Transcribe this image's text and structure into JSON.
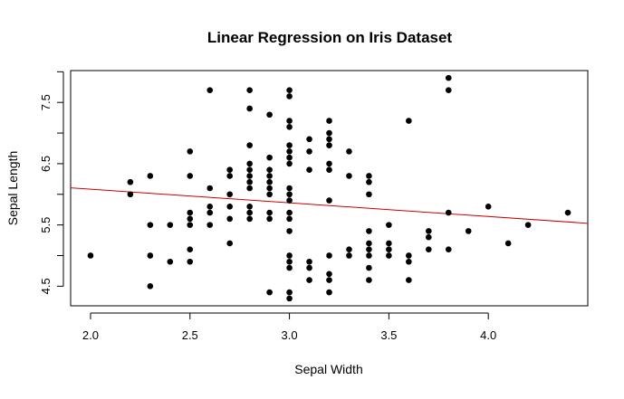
{
  "chart_data": {
    "type": "scatter",
    "title": "Linear Regression on Iris Dataset",
    "xlabel": "Sepal Width",
    "ylabel": "Sepal Length",
    "xlim": [
      1.9,
      4.5
    ],
    "ylim": [
      4.18,
      8.02
    ],
    "x_ticks": [
      2.0,
      2.5,
      3.0,
      3.5,
      4.0
    ],
    "x_tick_labels": [
      "2.0",
      "2.5",
      "3.0",
      "3.5",
      "4.0"
    ],
    "y_ticks": [
      4.5,
      5.0,
      5.5,
      6.0,
      6.5,
      7.0,
      7.5,
      8.0
    ],
    "y_tick_labels": {
      "4.5": "4.5",
      "5.5": "5.5",
      "6.5": "6.5",
      "7.5": "7.5"
    },
    "grid": false,
    "colors": {
      "points": "#000000",
      "regression_line": "#cc0000"
    },
    "regression_line": {
      "x_range": [
        1.9,
        4.5
      ],
      "intercept": 6.53,
      "slope": -0.223
    },
    "points": [
      [
        2.0,
        5.0
      ],
      [
        2.2,
        6.2
      ],
      [
        2.2,
        6.0
      ],
      [
        2.3,
        6.3
      ],
      [
        2.3,
        5.5
      ],
      [
        2.3,
        5.0
      ],
      [
        2.3,
        4.5
      ],
      [
        2.4,
        5.5
      ],
      [
        2.4,
        4.9
      ],
      [
        2.5,
        6.7
      ],
      [
        2.5,
        6.3
      ],
      [
        2.5,
        5.7
      ],
      [
        2.5,
        5.6
      ],
      [
        2.5,
        5.5
      ],
      [
        2.5,
        5.1
      ],
      [
        2.5,
        4.9
      ],
      [
        2.6,
        7.7
      ],
      [
        2.6,
        6.1
      ],
      [
        2.6,
        5.8
      ],
      [
        2.6,
        5.7
      ],
      [
        2.6,
        5.5
      ],
      [
        2.7,
        6.4
      ],
      [
        2.7,
        6.3
      ],
      [
        2.7,
        6.0
      ],
      [
        2.7,
        5.8
      ],
      [
        2.7,
        5.6
      ],
      [
        2.7,
        5.2
      ],
      [
        2.8,
        7.7
      ],
      [
        2.8,
        7.4
      ],
      [
        2.8,
        6.8
      ],
      [
        2.8,
        6.5
      ],
      [
        2.8,
        6.4
      ],
      [
        2.8,
        6.3
      ],
      [
        2.8,
        6.2
      ],
      [
        2.8,
        6.1
      ],
      [
        2.8,
        5.8
      ],
      [
        2.8,
        5.7
      ],
      [
        2.8,
        5.6
      ],
      [
        2.9,
        7.3
      ],
      [
        2.9,
        6.6
      ],
      [
        2.9,
        6.4
      ],
      [
        2.9,
        6.3
      ],
      [
        2.9,
        6.2
      ],
      [
        2.9,
        6.1
      ],
      [
        2.9,
        6.0
      ],
      [
        2.9,
        5.7
      ],
      [
        2.9,
        5.6
      ],
      [
        2.9,
        4.4
      ],
      [
        3.0,
        7.7
      ],
      [
        3.0,
        7.6
      ],
      [
        3.0,
        7.2
      ],
      [
        3.0,
        7.1
      ],
      [
        3.0,
        6.8
      ],
      [
        3.0,
        6.7
      ],
      [
        3.0,
        6.6
      ],
      [
        3.0,
        6.5
      ],
      [
        3.0,
        6.1
      ],
      [
        3.0,
        6.0
      ],
      [
        3.0,
        5.9
      ],
      [
        3.0,
        5.7
      ],
      [
        3.0,
        5.6
      ],
      [
        3.0,
        5.4
      ],
      [
        3.0,
        5.0
      ],
      [
        3.0,
        4.9
      ],
      [
        3.0,
        4.8
      ],
      [
        3.0,
        4.4
      ],
      [
        3.0,
        4.3
      ],
      [
        3.1,
        6.9
      ],
      [
        3.1,
        6.7
      ],
      [
        3.1,
        6.4
      ],
      [
        3.1,
        4.9
      ],
      [
        3.1,
        4.8
      ],
      [
        3.1,
        4.6
      ],
      [
        3.2,
        7.2
      ],
      [
        3.2,
        7.0
      ],
      [
        3.2,
        6.9
      ],
      [
        3.2,
        6.8
      ],
      [
        3.2,
        6.5
      ],
      [
        3.2,
        6.4
      ],
      [
        3.2,
        5.9
      ],
      [
        3.2,
        5.0
      ],
      [
        3.2,
        4.7
      ],
      [
        3.2,
        4.6
      ],
      [
        3.2,
        4.4
      ],
      [
        3.3,
        6.7
      ],
      [
        3.3,
        6.3
      ],
      [
        3.3,
        5.1
      ],
      [
        3.3,
        5.0
      ],
      [
        3.4,
        6.3
      ],
      [
        3.4,
        6.2
      ],
      [
        3.4,
        6.0
      ],
      [
        3.4,
        5.4
      ],
      [
        3.4,
        5.2
      ],
      [
        3.4,
        5.1
      ],
      [
        3.4,
        5.0
      ],
      [
        3.4,
        4.8
      ],
      [
        3.4,
        4.6
      ],
      [
        3.5,
        5.5
      ],
      [
        3.5,
        5.2
      ],
      [
        3.5,
        5.1
      ],
      [
        3.5,
        5.0
      ],
      [
        3.6,
        7.2
      ],
      [
        3.6,
        5.0
      ],
      [
        3.6,
        4.9
      ],
      [
        3.6,
        4.6
      ],
      [
        3.7,
        5.4
      ],
      [
        3.7,
        5.3
      ],
      [
        3.7,
        5.1
      ],
      [
        3.8,
        7.9
      ],
      [
        3.8,
        7.7
      ],
      [
        3.8,
        5.7
      ],
      [
        3.8,
        5.1
      ],
      [
        3.9,
        5.4
      ],
      [
        4.0,
        5.8
      ],
      [
        4.1,
        5.2
      ],
      [
        4.2,
        5.5
      ],
      [
        4.4,
        5.7
      ]
    ]
  }
}
